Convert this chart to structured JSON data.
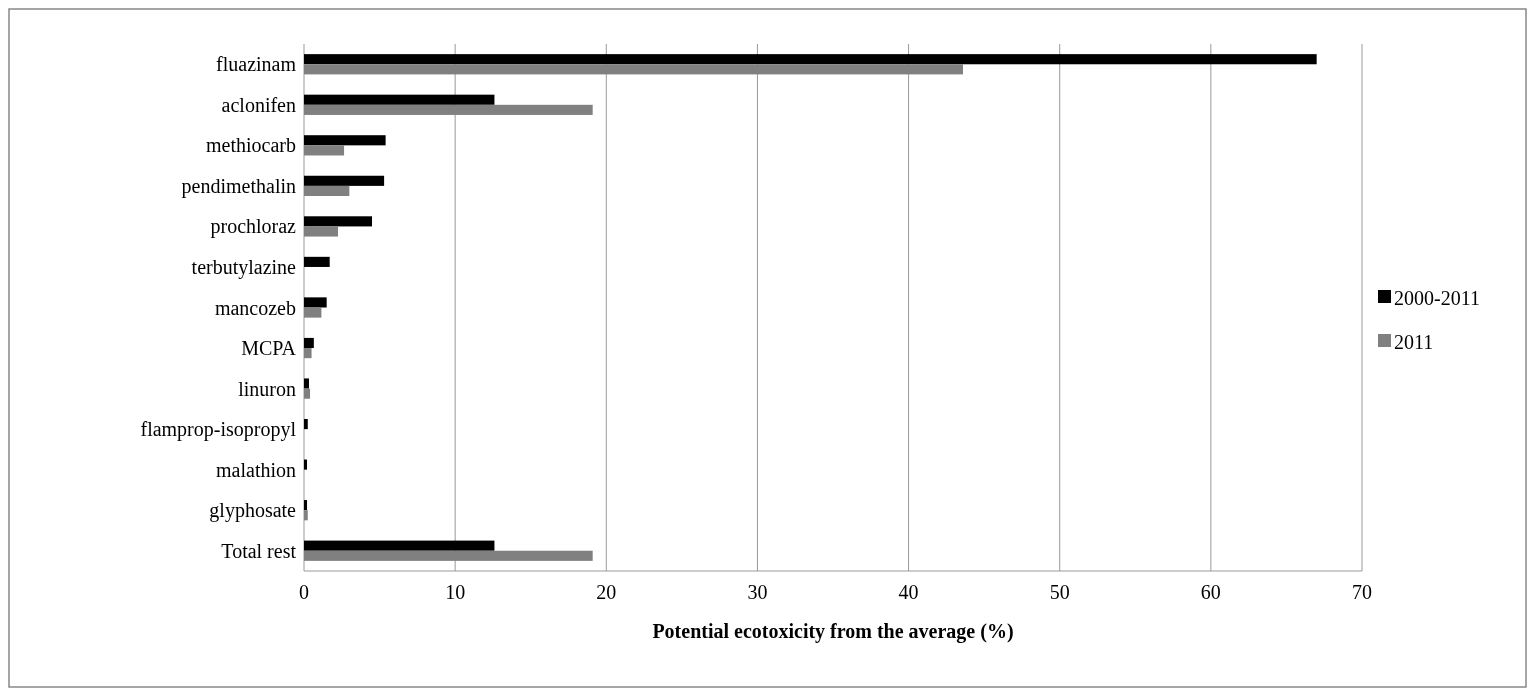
{
  "chart_data": {
    "type": "bar",
    "orientation": "horizontal",
    "xlabel": "Potential ecotoxicity from the average (%)",
    "categories": [
      "fluazinam",
      "aclonifen",
      "methiocarb",
      "pendimethalin",
      "prochloraz",
      "terbutylazine",
      "mancozeb",
      "MCPA",
      "linuron",
      "flamprop-isopropyl",
      "malathion",
      "glyphosate",
      "Total rest"
    ],
    "series": [
      {
        "name": "2000-2011",
        "color": "#000000",
        "values": [
          67,
          12.6,
          5.4,
          5.3,
          4.5,
          1.7,
          1.5,
          0.65,
          0.33,
          0.25,
          0.2,
          0.2,
          12.6
        ]
      },
      {
        "name": "2011",
        "color": "#808080",
        "values": [
          43.6,
          19.1,
          2.65,
          3.0,
          2.25,
          null,
          1.15,
          0.5,
          0.4,
          null,
          null,
          0.25,
          19.1
        ]
      }
    ],
    "xlim": [
      0,
      70
    ],
    "xticks": [
      0,
      10,
      20,
      30,
      40,
      50,
      60,
      70
    ],
    "grid": "x",
    "legend": "right"
  }
}
